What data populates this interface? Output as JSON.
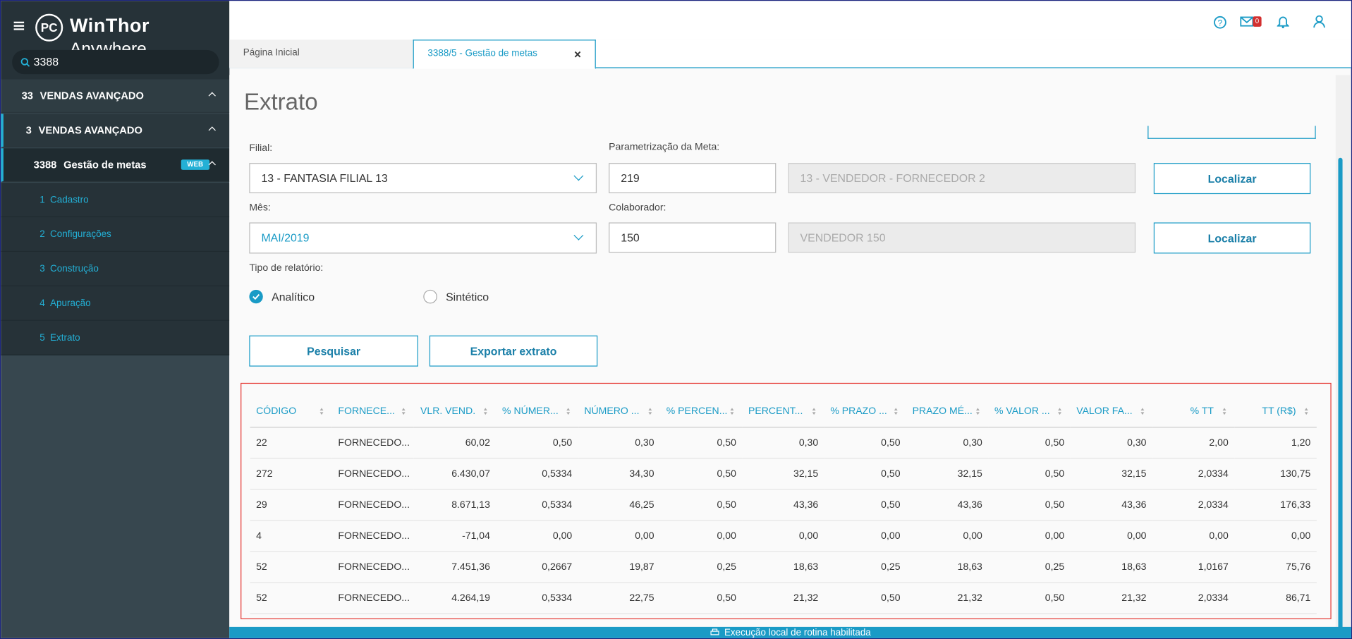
{
  "header": {
    "logo": "PC",
    "brand": "WinThor",
    "brand_suffix": "Anywhere",
    "search": "3388",
    "mail_count": "0"
  },
  "nav": {
    "items": [
      {
        "code": "33",
        "label": "VENDAS AVANÇADO"
      },
      {
        "code": "3",
        "label": "VENDAS AVANÇADO"
      },
      {
        "code": "3388",
        "label": "Gestão de metas",
        "badge": "WEB"
      }
    ],
    "subitems": [
      {
        "code": "1",
        "label": "Cadastro"
      },
      {
        "code": "2",
        "label": "Configurações"
      },
      {
        "code": "3",
        "label": "Construção"
      },
      {
        "code": "4",
        "label": "Apuração"
      },
      {
        "code": "5",
        "label": "Extrato"
      }
    ]
  },
  "tabs": [
    {
      "label": "Página Inicial"
    },
    {
      "label": "3388/5 - Gestão de metas",
      "close": "×"
    }
  ],
  "page": {
    "title": "Extrato"
  },
  "form": {
    "filial": {
      "label": "Filial:",
      "value": "13 - FANTASIA FILIAL 13"
    },
    "parametrizacao": {
      "label": "Parametrização da Meta:",
      "value": "219",
      "description": "13 - VENDEDOR - FORNECEDOR 2",
      "button": "Localizar"
    },
    "mes": {
      "label": "Mês:",
      "value": "MAI/2019"
    },
    "colaborador": {
      "label": "Colaborador:",
      "value": "150",
      "description": "VENDEDOR 150",
      "button": "Localizar"
    },
    "tipo": {
      "label": "Tipo de relatório:",
      "options": [
        "Analítico",
        "Sintético"
      ]
    },
    "buttons": [
      "Pesquisar",
      "Exportar extrato"
    ]
  },
  "table": {
    "headers": [
      "CÓDIGO",
      "FORNECE...",
      "VLR. VEND.",
      "% NÚMER...",
      "NÚMERO ...",
      "% PERCEN...",
      "PERCENT...",
      "% PRAZO ...",
      "PRAZO MÉ...",
      "% VALOR ...",
      "VALOR FA...",
      "% TT",
      "TT (R$)"
    ],
    "rows": [
      [
        "22",
        "FORNECEDO...",
        "60,02",
        "0,50",
        "0,30",
        "0,50",
        "0,30",
        "0,50",
        "0,30",
        "0,50",
        "0,30",
        "2,00",
        "1,20"
      ],
      [
        "272",
        "FORNECEDO...",
        "6.430,07",
        "0,5334",
        "34,30",
        "0,50",
        "32,15",
        "0,50",
        "32,15",
        "0,50",
        "32,15",
        "2,0334",
        "130,75"
      ],
      [
        "29",
        "FORNECEDO...",
        "8.671,13",
        "0,5334",
        "46,25",
        "0,50",
        "43,36",
        "0,50",
        "43,36",
        "0,50",
        "43,36",
        "2,0334",
        "176,33"
      ],
      [
        "4",
        "FORNECEDO...",
        "-71,04",
        "0,00",
        "0,00",
        "0,00",
        "0,00",
        "0,00",
        "0,00",
        "0,00",
        "0,00",
        "0,00",
        "0,00"
      ],
      [
        "52",
        "FORNECEDO...",
        "7.451,36",
        "0,2667",
        "19,87",
        "0,25",
        "18,63",
        "0,25",
        "18,63",
        "0,25",
        "18,63",
        "1,0167",
        "75,76"
      ],
      [
        "52",
        "FORNECEDO...",
        "4.264,19",
        "0,5334",
        "22,75",
        "0,50",
        "21,32",
        "0,50",
        "21,32",
        "0,50",
        "21,32",
        "2,0334",
        "86,71"
      ]
    ]
  },
  "footer": {
    "status": "Execução local de rotina habilitada"
  }
}
